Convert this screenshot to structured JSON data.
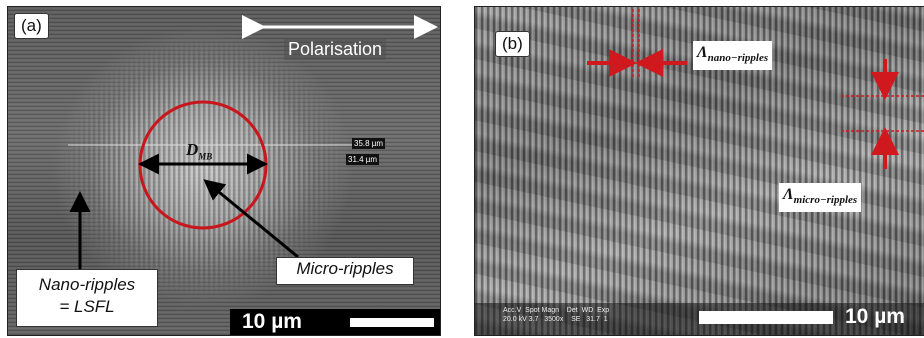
{
  "panel_a": {
    "label": "(a)",
    "polarisation_label": "Polarisation",
    "diameter_label_main": "D",
    "diameter_label_sub": "MB",
    "measure_1": "35.8 µm",
    "measure_2": "31.4 µm",
    "callout_micro": "Micro-ripples",
    "callout_nano_line1": "Nano-ripples",
    "callout_nano_line2": "= LSFL",
    "scale_label": "10 µm",
    "colors": {
      "circle": "#c8161d",
      "arrow": "#000000"
    }
  },
  "panel_b": {
    "label": "(b)",
    "lambda_nano_main": "Λ",
    "lambda_nano_sub": "nano−ripples",
    "lambda_micro_main": "Λ",
    "lambda_micro_sub": "micro−ripples",
    "meta_line1": "Acc.V  Spot Magn    Det  WD  Exp",
    "meta_line2": "20.0 kV 3.7   3500x    SE   31.7  1",
    "scale_label": "10 µm",
    "colors": {
      "arrow": "#d0191f"
    }
  }
}
